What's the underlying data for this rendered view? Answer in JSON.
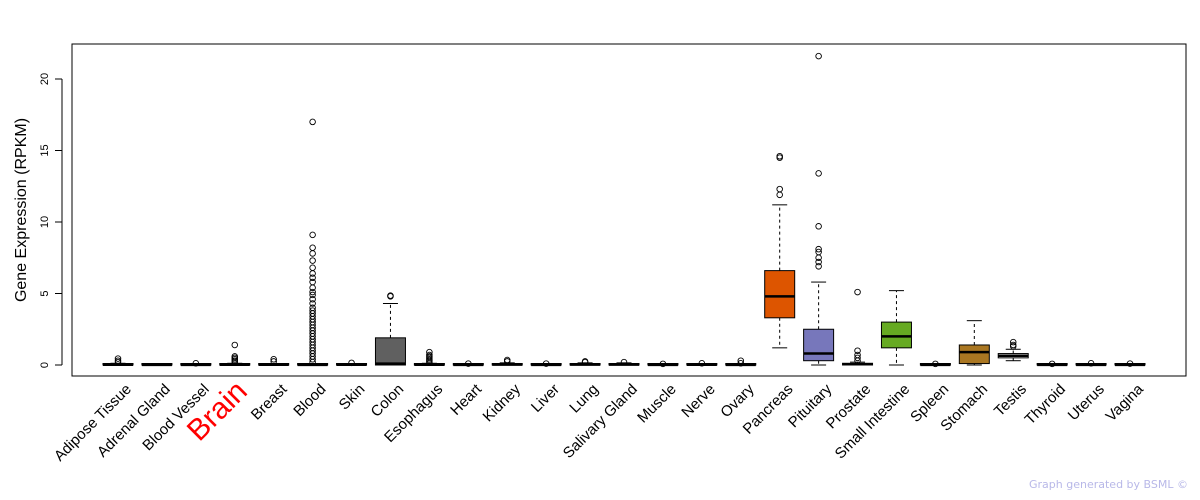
{
  "chart_data": {
    "type": "box",
    "title": "",
    "ylabel": "Gene Expression (RPKM)",
    "xlabel": "",
    "ylim": [
      0,
      22.6
    ],
    "yticks": [
      0,
      5,
      10,
      15,
      20
    ],
    "highlight_category": "Brain",
    "highlight_color": "#ff0000",
    "categories": [
      {
        "name": "Adipose Tissue",
        "color": "#ffffff",
        "q1": 0.0,
        "median": 0.02,
        "q3": 0.06,
        "whisker_low": 0.0,
        "whisker_high": 0.12,
        "outliers": [
          0.2,
          0.3,
          0.45
        ]
      },
      {
        "name": "Adrenal Gland",
        "color": "#ffffff",
        "q1": 0.0,
        "median": 0.01,
        "q3": 0.04,
        "whisker_low": 0.0,
        "whisker_high": 0.08,
        "outliers": []
      },
      {
        "name": "Blood Vessel",
        "color": "#ffffff",
        "q1": 0.0,
        "median": 0.01,
        "q3": 0.04,
        "whisker_low": 0.0,
        "whisker_high": 0.08,
        "outliers": [
          0.12
        ]
      },
      {
        "name": "Brain",
        "color": "#ffffff",
        "q1": 0.0,
        "median": 0.02,
        "q3": 0.06,
        "whisker_low": 0.0,
        "whisker_high": 0.12,
        "outliers": [
          0.2,
          0.3,
          0.4,
          0.5,
          0.6,
          1.4
        ]
      },
      {
        "name": "Breast",
        "color": "#ffffff",
        "q1": 0.0,
        "median": 0.02,
        "q3": 0.05,
        "whisker_low": 0.0,
        "whisker_high": 0.1,
        "outliers": [
          0.25,
          0.4
        ]
      },
      {
        "name": "Blood",
        "color": "#ffffff",
        "q1": 0.0,
        "median": 0.01,
        "q3": 0.05,
        "whisker_low": 0.0,
        "whisker_high": 0.1,
        "outliers": [
          0.2,
          0.4,
          0.6,
          0.8,
          1.0,
          1.2,
          1.4,
          1.6,
          1.8,
          2.0,
          2.2,
          2.4,
          2.6,
          2.8,
          3.0,
          3.2,
          3.4,
          3.6,
          3.8,
          4.0,
          4.3,
          4.6,
          4.9,
          5.1,
          5.4,
          5.8,
          6.1,
          6.4,
          6.8,
          7.3,
          7.8,
          8.2,
          9.1,
          17.0
        ]
      },
      {
        "name": "Skin",
        "color": "#ffffff",
        "q1": 0.0,
        "median": 0.02,
        "q3": 0.06,
        "whisker_low": 0.0,
        "whisker_high": 0.1,
        "outliers": [
          0.15
        ]
      },
      {
        "name": "Colon",
        "color": "#606060",
        "q1": 0.0,
        "median": 0.1,
        "q3": 1.9,
        "whisker_low": 0.0,
        "whisker_high": 4.3,
        "outliers": [
          4.8,
          4.85
        ]
      },
      {
        "name": "Esophagus",
        "color": "#ffffff",
        "q1": 0.0,
        "median": 0.02,
        "q3": 0.06,
        "whisker_low": 0.0,
        "whisker_high": 0.12,
        "outliers": [
          0.2,
          0.3,
          0.4,
          0.5,
          0.6,
          0.7,
          0.9
        ]
      },
      {
        "name": "Heart",
        "color": "#ffffff",
        "q1": 0.0,
        "median": 0.01,
        "q3": 0.03,
        "whisker_low": 0.0,
        "whisker_high": 0.06,
        "outliers": [
          0.1
        ]
      },
      {
        "name": "Kidney",
        "color": "#ffffff",
        "q1": 0.0,
        "median": 0.03,
        "q3": 0.08,
        "whisker_low": 0.0,
        "whisker_high": 0.15,
        "outliers": [
          0.25,
          0.35
        ]
      },
      {
        "name": "Liver",
        "color": "#ffffff",
        "q1": 0.0,
        "median": 0.01,
        "q3": 0.03,
        "whisker_low": 0.0,
        "whisker_high": 0.06,
        "outliers": [
          0.1
        ]
      },
      {
        "name": "Lung",
        "color": "#ffffff",
        "q1": 0.0,
        "median": 0.03,
        "q3": 0.08,
        "whisker_low": 0.0,
        "whisker_high": 0.15,
        "outliers": [
          0.2,
          0.25
        ]
      },
      {
        "name": "Salivary Gland",
        "color": "#ffffff",
        "q1": 0.0,
        "median": 0.03,
        "q3": 0.08,
        "whisker_low": 0.0,
        "whisker_high": 0.15,
        "outliers": [
          0.2
        ]
      },
      {
        "name": "Muscle",
        "color": "#ffffff",
        "q1": 0.0,
        "median": 0.01,
        "q3": 0.03,
        "whisker_low": 0.0,
        "whisker_high": 0.05,
        "outliers": [
          0.08
        ]
      },
      {
        "name": "Nerve",
        "color": "#ffffff",
        "q1": 0.0,
        "median": 0.02,
        "q3": 0.05,
        "whisker_low": 0.0,
        "whisker_high": 0.1,
        "outliers": [
          0.12
        ]
      },
      {
        "name": "Ovary",
        "color": "#ffffff",
        "q1": 0.0,
        "median": 0.01,
        "q3": 0.04,
        "whisker_low": 0.0,
        "whisker_high": 0.08,
        "outliers": [
          0.12,
          0.3
        ]
      },
      {
        "name": "Pancreas",
        "color": "#dd5500",
        "q1": 3.3,
        "median": 4.8,
        "q3": 6.6,
        "whisker_low": 1.2,
        "whisker_high": 11.2,
        "outliers": [
          11.9,
          12.3,
          14.5,
          14.6
        ]
      },
      {
        "name": "Pituitary",
        "color": "#7777bb",
        "q1": 0.3,
        "median": 0.8,
        "q3": 2.5,
        "whisker_low": 0.0,
        "whisker_high": 5.8,
        "outliers": [
          6.9,
          7.2,
          7.5,
          7.9,
          8.1,
          9.7,
          13.4,
          21.6
        ]
      },
      {
        "name": "Prostate",
        "color": "#ffffff",
        "q1": 0.0,
        "median": 0.05,
        "q3": 0.12,
        "whisker_low": 0.0,
        "whisker_high": 0.2,
        "outliers": [
          0.3,
          0.5,
          0.7,
          1.0,
          5.1
        ]
      },
      {
        "name": "Small Intestine",
        "color": "#66aa22",
        "q1": 1.2,
        "median": 2.0,
        "q3": 3.0,
        "whisker_low": 0.0,
        "whisker_high": 5.2,
        "outliers": []
      },
      {
        "name": "Spleen",
        "color": "#ffffff",
        "q1": 0.0,
        "median": 0.01,
        "q3": 0.03,
        "whisker_low": 0.0,
        "whisker_high": 0.05,
        "outliers": [
          0.08
        ]
      },
      {
        "name": "Stomach",
        "color": "#aa7722",
        "q1": 0.1,
        "median": 0.9,
        "q3": 1.4,
        "whisker_low": 0.0,
        "whisker_high": 3.1,
        "outliers": []
      },
      {
        "name": "Testis",
        "color": "#ffffff",
        "q1": 0.5,
        "median": 0.65,
        "q3": 0.8,
        "whisker_low": 0.3,
        "whisker_high": 1.1,
        "outliers": [
          1.3,
          1.4,
          1.6
        ]
      },
      {
        "name": "Thyroid",
        "color": "#ffffff",
        "q1": 0.0,
        "median": 0.01,
        "q3": 0.03,
        "whisker_low": 0.0,
        "whisker_high": 0.05,
        "outliers": [
          0.08
        ]
      },
      {
        "name": "Uterus",
        "color": "#ffffff",
        "q1": 0.0,
        "median": 0.01,
        "q3": 0.04,
        "whisker_low": 0.0,
        "whisker_high": 0.08,
        "outliers": [
          0.12
        ]
      },
      {
        "name": "Vagina",
        "color": "#ffffff",
        "q1": 0.0,
        "median": 0.01,
        "q3": 0.04,
        "whisker_low": 0.0,
        "whisker_high": 0.08,
        "outliers": [
          0.1
        ]
      }
    ]
  },
  "footer": {
    "credit": "Graph generated by BSML ©"
  }
}
